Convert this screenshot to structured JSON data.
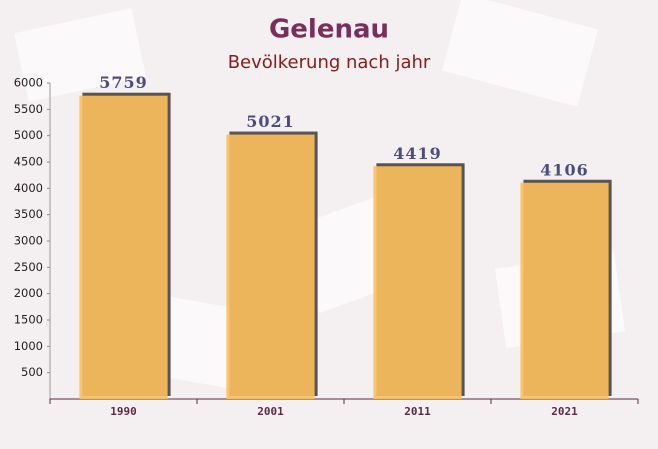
{
  "chart_data": {
    "type": "bar",
    "title": "Gelenau",
    "subtitle": "Bevölkerung nach jahr",
    "categories": [
      "1990",
      "2001",
      "2011",
      "2021"
    ],
    "values": [
      5759,
      5021,
      4419,
      4106
    ],
    "color": "#fdbf5c",
    "ylim": [
      0,
      6000
    ],
    "yticks": [
      500,
      1000,
      1500,
      2000,
      2500,
      3000,
      3500,
      4000,
      4500,
      5000,
      5500,
      6000
    ],
    "grid": false
  }
}
